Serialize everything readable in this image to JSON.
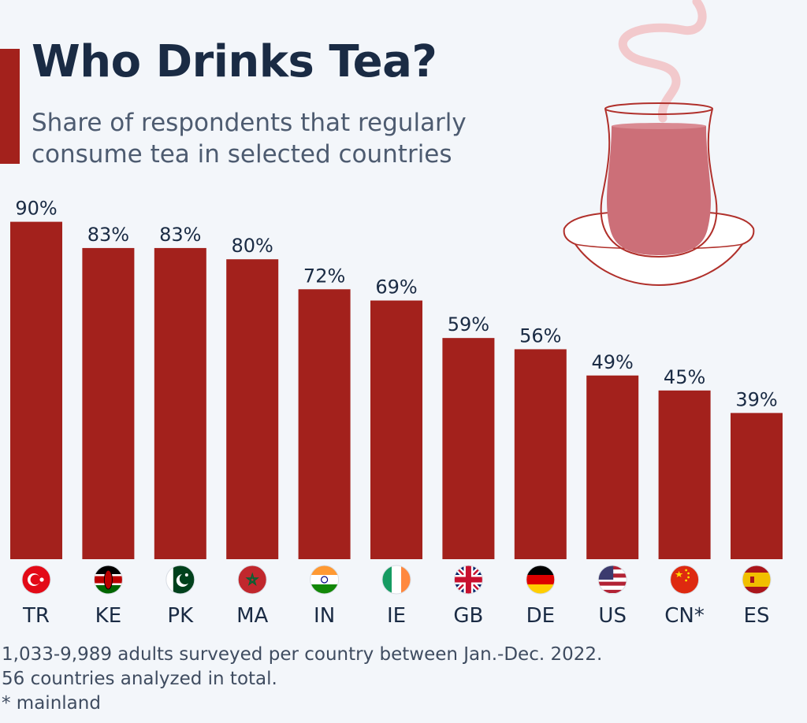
{
  "header": {
    "title": "Who Drinks Tea?",
    "subtitle_line1": "Share of respondents that regularly",
    "subtitle_line2": "consume tea in selected countries"
  },
  "colors": {
    "bar": "#a3211c",
    "title": "#1a2b44",
    "accent": "#a3211c",
    "cup_stroke": "#b0302b",
    "tea": "#cc6f78"
  },
  "decor": {
    "icon": "tea-glass-icon"
  },
  "chart_data": {
    "type": "bar",
    "categories": [
      "TR",
      "KE",
      "PK",
      "MA",
      "IN",
      "IE",
      "GB",
      "DE",
      "US",
      "CN*",
      "ES"
    ],
    "values": [
      90,
      83,
      83,
      80,
      72,
      69,
      59,
      56,
      49,
      45,
      39
    ],
    "value_labels": [
      "90%",
      "83%",
      "83%",
      "80%",
      "72%",
      "69%",
      "59%",
      "56%",
      "49%",
      "45%",
      "39%"
    ],
    "flags": [
      "flag-turkey-icon",
      "flag-kenya-icon",
      "flag-pakistan-icon",
      "flag-morocco-icon",
      "flag-india-icon",
      "flag-ireland-icon",
      "flag-uk-icon",
      "flag-germany-icon",
      "flag-usa-icon",
      "flag-china-icon",
      "flag-spain-icon"
    ],
    "title": "Who Drinks Tea?",
    "subtitle": "Share of respondents that regularly consume tea in selected countries",
    "unit": "%",
    "ylim": [
      0,
      90
    ],
    "grid": false,
    "legend": "none"
  },
  "footnotes": {
    "line1": "1,033-9,989 adults surveyed per country between Jan.-Dec. 2022.",
    "line2": "56 countries analyzed in total.",
    "line3": "* mainland"
  }
}
